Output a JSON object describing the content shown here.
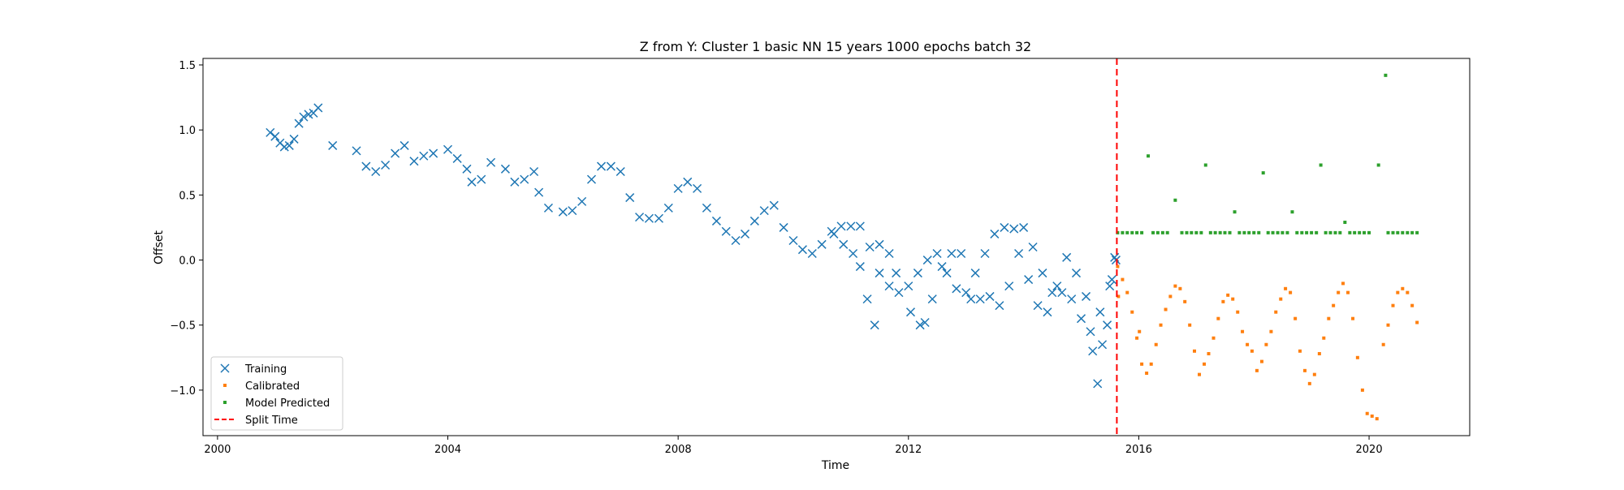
{
  "chart_data": {
    "type": "scatter",
    "title": "Z from Y: Cluster 1 basic NN 15 years 1000 epochs batch 32",
    "xlabel": "Time",
    "ylabel": "Offset",
    "xlim": [
      "1999-10-01",
      "2021-10-01"
    ],
    "ylim": [
      -1.35,
      1.55
    ],
    "xticks": [
      {
        "label": "2000",
        "date": "2000-01-01"
      },
      {
        "label": "2004",
        "date": "2004-01-01"
      },
      {
        "label": "2008",
        "date": "2008-01-01"
      },
      {
        "label": "2012",
        "date": "2012-01-01"
      },
      {
        "label": "2016",
        "date": "2016-01-01"
      },
      {
        "label": "2020",
        "date": "2020-01-01"
      }
    ],
    "yticks": [
      {
        "label": "−1.0",
        "value": -1.0
      },
      {
        "label": "−0.5",
        "value": -0.5
      },
      {
        "label": "0.0",
        "value": 0.0
      },
      {
        "label": "0.5",
        "value": 0.5
      },
      {
        "label": "1.0",
        "value": 1.0
      },
      {
        "label": "1.5",
        "value": 1.5
      }
    ],
    "grid": false,
    "legend_position": "lower-left",
    "split_time": "2015-08-15",
    "series": [
      {
        "name": "Training",
        "marker": "x",
        "color": "#1f77b4",
        "points": [
          [
            "2000-12-01",
            0.98
          ],
          [
            "2001-01-01",
            0.95
          ],
          [
            "2001-02-01",
            0.9
          ],
          [
            "2001-03-01",
            0.87
          ],
          [
            "2001-04-01",
            0.88
          ],
          [
            "2001-05-01",
            0.93
          ],
          [
            "2001-06-01",
            1.05
          ],
          [
            "2001-07-01",
            1.1
          ],
          [
            "2001-08-01",
            1.12
          ],
          [
            "2001-09-01",
            1.13
          ],
          [
            "2001-10-01",
            1.17
          ],
          [
            "2002-01-01",
            0.88
          ],
          [
            "2002-06-01",
            0.84
          ],
          [
            "2002-08-01",
            0.72
          ],
          [
            "2002-10-01",
            0.68
          ],
          [
            "2002-12-01",
            0.73
          ],
          [
            "2003-02-01",
            0.82
          ],
          [
            "2003-04-01",
            0.88
          ],
          [
            "2003-06-01",
            0.76
          ],
          [
            "2003-08-01",
            0.8
          ],
          [
            "2003-10-01",
            0.82
          ],
          [
            "2004-01-01",
            0.85
          ],
          [
            "2004-03-01",
            0.78
          ],
          [
            "2004-05-01",
            0.7
          ],
          [
            "2004-06-01",
            0.6
          ],
          [
            "2004-08-01",
            0.62
          ],
          [
            "2004-10-01",
            0.75
          ],
          [
            "2005-01-01",
            0.7
          ],
          [
            "2005-03-01",
            0.6
          ],
          [
            "2005-05-01",
            0.62
          ],
          [
            "2005-07-01",
            0.68
          ],
          [
            "2005-08-01",
            0.52
          ],
          [
            "2005-10-01",
            0.4
          ],
          [
            "2006-01-01",
            0.37
          ],
          [
            "2006-03-01",
            0.38
          ],
          [
            "2006-05-01",
            0.45
          ],
          [
            "2006-07-01",
            0.62
          ],
          [
            "2006-09-01",
            0.72
          ],
          [
            "2006-11-01",
            0.72
          ],
          [
            "2007-01-01",
            0.68
          ],
          [
            "2007-03-01",
            0.48
          ],
          [
            "2007-05-01",
            0.33
          ],
          [
            "2007-07-01",
            0.32
          ],
          [
            "2007-09-01",
            0.32
          ],
          [
            "2007-11-01",
            0.4
          ],
          [
            "2008-01-01",
            0.55
          ],
          [
            "2008-03-01",
            0.6
          ],
          [
            "2008-05-01",
            0.55
          ],
          [
            "2008-07-01",
            0.4
          ],
          [
            "2008-09-01",
            0.3
          ],
          [
            "2008-11-01",
            0.22
          ],
          [
            "2009-01-01",
            0.15
          ],
          [
            "2009-03-01",
            0.2
          ],
          [
            "2009-05-01",
            0.3
          ],
          [
            "2009-07-01",
            0.38
          ],
          [
            "2009-09-01",
            0.42
          ],
          [
            "2009-11-01",
            0.25
          ],
          [
            "2010-01-01",
            0.15
          ],
          [
            "2010-03-01",
            0.08
          ],
          [
            "2010-05-01",
            0.05
          ],
          [
            "2010-07-01",
            0.12
          ],
          [
            "2010-09-01",
            0.22
          ],
          [
            "2010-11-01",
            0.26
          ],
          [
            "2011-01-01",
            0.26
          ],
          [
            "2011-03-01",
            0.26
          ],
          [
            "2011-05-01",
            0.1
          ],
          [
            "2011-07-01",
            -0.1
          ],
          [
            "2011-09-01",
            -0.2
          ],
          [
            "2011-11-01",
            -0.25
          ],
          [
            "2012-01-01",
            -0.2
          ],
          [
            "2012-03-01",
            -0.1
          ],
          [
            "2012-05-01",
            0.0
          ],
          [
            "2012-07-01",
            0.05
          ],
          [
            "2012-09-01",
            -0.1
          ],
          [
            "2012-11-01",
            -0.22
          ],
          [
            "2013-01-01",
            -0.25
          ],
          [
            "2013-03-01",
            -0.1
          ],
          [
            "2013-05-01",
            0.05
          ],
          [
            "2013-07-01",
            0.2
          ],
          [
            "2013-09-01",
            0.25
          ],
          [
            "2013-11-01",
            0.24
          ],
          [
            "2014-01-01",
            0.25
          ],
          [
            "2014-03-01",
            0.1
          ],
          [
            "2014-05-01",
            -0.1
          ],
          [
            "2014-07-01",
            -0.25
          ],
          [
            "2014-09-01",
            -0.25
          ],
          [
            "2014-11-01",
            -0.3
          ],
          [
            "2015-01-01",
            -0.45
          ],
          [
            "2015-03-01",
            -0.55
          ],
          [
            "2015-05-01",
            -0.4
          ],
          [
            "2015-07-01",
            -0.2
          ],
          [
            "2015-08-01",
            0.02
          ],
          [
            "2010-09-15",
            0.2
          ],
          [
            "2010-11-15",
            0.12
          ],
          [
            "2011-01-15",
            0.05
          ],
          [
            "2011-03-01",
            -0.05
          ],
          [
            "2011-04-15",
            -0.3
          ],
          [
            "2011-06-01",
            -0.5
          ],
          [
            "2011-07-01",
            0.12
          ],
          [
            "2011-09-01",
            0.05
          ],
          [
            "2011-10-15",
            -0.1
          ],
          [
            "2012-01-15",
            -0.4
          ],
          [
            "2012-03-15",
            -0.5
          ],
          [
            "2012-04-15",
            -0.48
          ],
          [
            "2012-06-01",
            -0.3
          ],
          [
            "2012-08-01",
            -0.05
          ],
          [
            "2012-10-01",
            0.05
          ],
          [
            "2012-12-01",
            0.05
          ],
          [
            "2013-02-01",
            -0.3
          ],
          [
            "2013-04-01",
            -0.3
          ],
          [
            "2013-06-01",
            -0.28
          ],
          [
            "2013-08-01",
            -0.35
          ],
          [
            "2013-10-01",
            -0.2
          ],
          [
            "2013-12-01",
            0.05
          ],
          [
            "2014-02-01",
            -0.15
          ],
          [
            "2014-04-01",
            -0.35
          ],
          [
            "2014-06-01",
            -0.4
          ],
          [
            "2014-08-01",
            -0.2
          ],
          [
            "2014-10-01",
            0.02
          ],
          [
            "2014-12-01",
            -0.1
          ],
          [
            "2015-02-01",
            -0.28
          ],
          [
            "2015-03-15",
            -0.7
          ],
          [
            "2015-04-15",
            -0.95
          ],
          [
            "2015-05-15",
            -0.65
          ],
          [
            "2015-06-15",
            -0.5
          ],
          [
            "2015-07-15",
            -0.15
          ],
          [
            "2015-08-10",
            0.0
          ]
        ]
      },
      {
        "name": "Calibrated",
        "marker": "dot",
        "color": "#ff7f0e",
        "points": [
          [
            "2015-08-20",
            -0.05
          ],
          [
            "2015-09-20",
            -0.15
          ],
          [
            "2015-10-20",
            -0.25
          ],
          [
            "2015-11-20",
            -0.4
          ],
          [
            "2015-12-20",
            -0.6
          ],
          [
            "2016-01-20",
            -0.8
          ],
          [
            "2016-02-20",
            -0.87
          ],
          [
            "2016-03-20",
            -0.8
          ],
          [
            "2016-04-20",
            -0.65
          ],
          [
            "2016-05-20",
            -0.5
          ],
          [
            "2016-06-20",
            -0.38
          ],
          [
            "2016-07-20",
            -0.28
          ],
          [
            "2016-08-20",
            -0.2
          ],
          [
            "2016-09-20",
            -0.22
          ],
          [
            "2016-10-20",
            -0.32
          ],
          [
            "2016-11-20",
            -0.5
          ],
          [
            "2016-12-20",
            -0.7
          ],
          [
            "2017-01-20",
            -0.88
          ],
          [
            "2017-02-20",
            -0.8
          ],
          [
            "2017-03-20",
            -0.72
          ],
          [
            "2017-04-20",
            -0.6
          ],
          [
            "2017-05-20",
            -0.45
          ],
          [
            "2017-06-20",
            -0.32
          ],
          [
            "2017-07-20",
            -0.27
          ],
          [
            "2017-08-20",
            -0.3
          ],
          [
            "2017-09-20",
            -0.4
          ],
          [
            "2017-10-20",
            -0.55
          ],
          [
            "2017-11-20",
            -0.65
          ],
          [
            "2017-12-20",
            -0.7
          ],
          [
            "2018-01-20",
            -0.85
          ],
          [
            "2018-02-20",
            -0.78
          ],
          [
            "2018-03-20",
            -0.65
          ],
          [
            "2018-04-20",
            -0.55
          ],
          [
            "2018-05-20",
            -0.4
          ],
          [
            "2018-06-20",
            -0.3
          ],
          [
            "2018-07-20",
            -0.22
          ],
          [
            "2018-08-20",
            -0.25
          ],
          [
            "2018-09-20",
            -0.45
          ],
          [
            "2018-10-20",
            -0.7
          ],
          [
            "2018-11-20",
            -0.85
          ],
          [
            "2018-12-20",
            -0.95
          ],
          [
            "2019-01-20",
            -0.88
          ],
          [
            "2019-02-20",
            -0.72
          ],
          [
            "2019-03-20",
            -0.6
          ],
          [
            "2019-04-20",
            -0.45
          ],
          [
            "2019-05-20",
            -0.35
          ],
          [
            "2019-06-20",
            -0.25
          ],
          [
            "2019-07-20",
            -0.18
          ],
          [
            "2019-08-20",
            -0.25
          ],
          [
            "2019-09-20",
            -0.45
          ],
          [
            "2019-10-20",
            -0.75
          ],
          [
            "2019-11-20",
            -1.0
          ],
          [
            "2019-12-20",
            -1.18
          ],
          [
            "2020-01-20",
            -1.2
          ],
          [
            "2020-02-20",
            -1.22
          ],
          [
            "2020-04-01",
            -0.65
          ],
          [
            "2020-05-01",
            -0.5
          ],
          [
            "2020-06-01",
            -0.35
          ],
          [
            "2020-07-01",
            -0.25
          ],
          [
            "2020-08-01",
            -0.22
          ],
          [
            "2020-09-01",
            -0.25
          ],
          [
            "2020-10-01",
            -0.35
          ],
          [
            "2020-11-01",
            -0.48
          ],
          [
            "2015-08-25",
            -0.28
          ],
          [
            "2016-01-05",
            -0.55
          ]
        ]
      },
      {
        "name": "Model Predicted",
        "marker": "square",
        "color": "#2ca02c",
        "points": [
          [
            "2015-08-20",
            0.21
          ],
          [
            "2015-09-20",
            0.21
          ],
          [
            "2015-10-20",
            0.21
          ],
          [
            "2015-11-20",
            0.21
          ],
          [
            "2015-12-20",
            0.21
          ],
          [
            "2016-01-20",
            0.21
          ],
          [
            "2016-03-01",
            0.8
          ],
          [
            "2016-04-01",
            0.21
          ],
          [
            "2016-05-01",
            0.21
          ],
          [
            "2016-06-01",
            0.21
          ],
          [
            "2016-07-01",
            0.21
          ],
          [
            "2016-08-20",
            0.46
          ],
          [
            "2016-10-01",
            0.21
          ],
          [
            "2016-11-01",
            0.21
          ],
          [
            "2016-12-01",
            0.21
          ],
          [
            "2017-01-01",
            0.21
          ],
          [
            "2017-02-01",
            0.21
          ],
          [
            "2017-03-01",
            0.73
          ],
          [
            "2017-04-01",
            0.21
          ],
          [
            "2017-05-01",
            0.21
          ],
          [
            "2017-06-01",
            0.21
          ],
          [
            "2017-07-01",
            0.21
          ],
          [
            "2017-08-01",
            0.21
          ],
          [
            "2017-09-01",
            0.37
          ],
          [
            "2017-10-01",
            0.21
          ],
          [
            "2017-11-01",
            0.21
          ],
          [
            "2017-12-01",
            0.21
          ],
          [
            "2018-01-01",
            0.21
          ],
          [
            "2018-02-01",
            0.21
          ],
          [
            "2018-03-01",
            0.67
          ],
          [
            "2018-04-01",
            0.21
          ],
          [
            "2018-05-01",
            0.21
          ],
          [
            "2018-06-01",
            0.21
          ],
          [
            "2018-07-01",
            0.21
          ],
          [
            "2018-08-01",
            0.21
          ],
          [
            "2018-09-01",
            0.37
          ],
          [
            "2018-10-01",
            0.21
          ],
          [
            "2018-11-01",
            0.21
          ],
          [
            "2018-12-01",
            0.21
          ],
          [
            "2019-01-01",
            0.21
          ],
          [
            "2019-02-01",
            0.21
          ],
          [
            "2019-03-01",
            0.73
          ],
          [
            "2019-04-01",
            0.21
          ],
          [
            "2019-05-01",
            0.21
          ],
          [
            "2019-06-01",
            0.21
          ],
          [
            "2019-07-01",
            0.21
          ],
          [
            "2019-08-01",
            0.29
          ],
          [
            "2019-09-01",
            0.21
          ],
          [
            "2019-10-01",
            0.21
          ],
          [
            "2019-11-01",
            0.21
          ],
          [
            "2019-12-01",
            0.21
          ],
          [
            "2020-01-01",
            0.21
          ],
          [
            "2020-03-01",
            0.73
          ],
          [
            "2020-04-15",
            1.42
          ],
          [
            "2020-05-01",
            0.21
          ],
          [
            "2020-06-01",
            0.21
          ],
          [
            "2020-07-01",
            0.21
          ],
          [
            "2020-08-01",
            0.21
          ],
          [
            "2020-09-01",
            0.21
          ],
          [
            "2020-10-01",
            0.21
          ],
          [
            "2020-11-01",
            0.21
          ]
        ]
      },
      {
        "name": "Split Time",
        "marker": "dashed-line",
        "color": "#ff0000"
      }
    ]
  }
}
